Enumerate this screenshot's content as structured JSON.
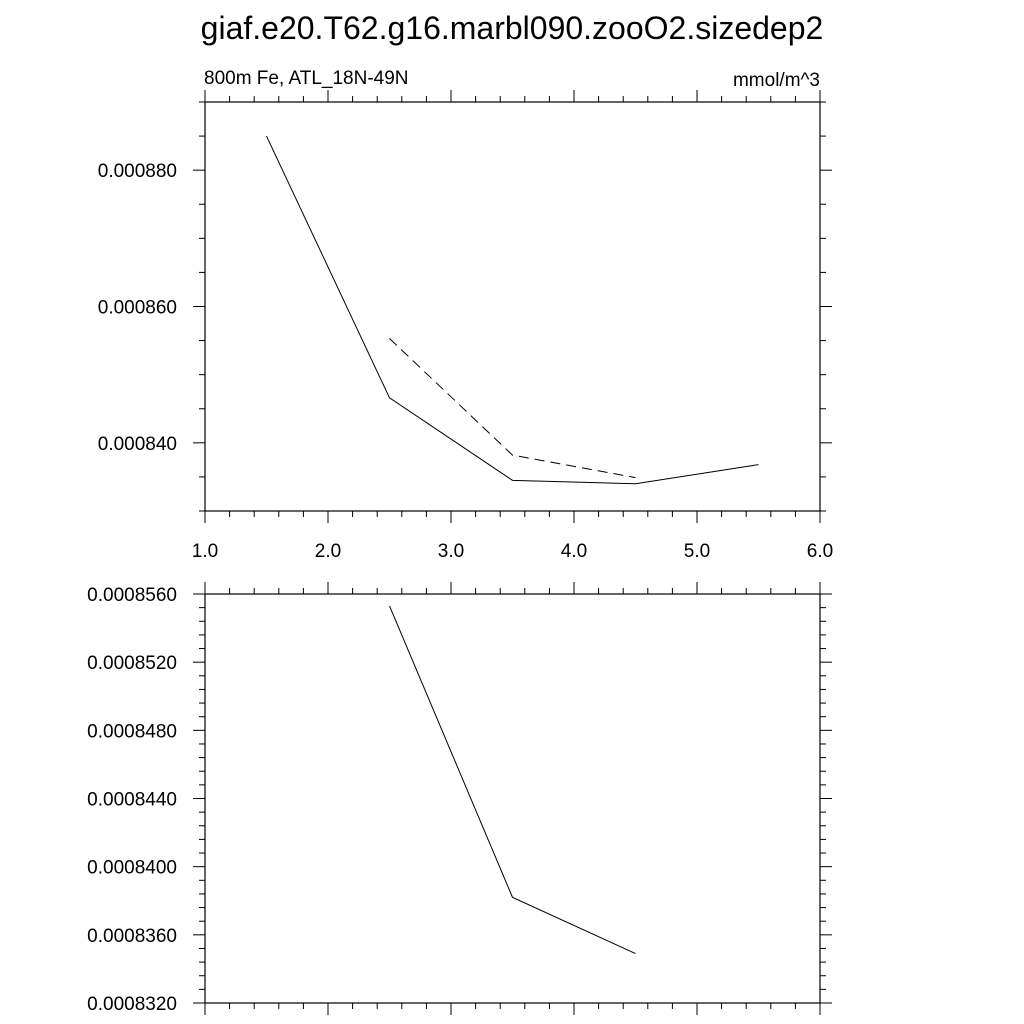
{
  "title": "giaf.e20.T62.g16.marbl090.zooO2.sizedep2",
  "chart_data": [
    {
      "type": "line",
      "left_label": "800m Fe, ATL_18N-49N",
      "right_label": "mmol/m^3",
      "xlim": [
        1.0,
        6.0
      ],
      "ylim": [
        0.00083,
        0.00089
      ],
      "x_ticks": [
        1.0,
        2.0,
        3.0,
        4.0,
        5.0,
        6.0
      ],
      "x_tick_labels": [
        "1.0",
        "2.0",
        "3.0",
        "4.0",
        "5.0",
        "6.0"
      ],
      "y_ticks": [
        0.00084,
        0.00086,
        0.00088
      ],
      "y_tick_labels": [
        "0.000840",
        "0.000860",
        "0.000880"
      ],
      "series": [
        {
          "line_style": "solid",
          "x": [
            1.5,
            2.5,
            3.5,
            4.5,
            5.5
          ],
          "y": [
            0.000885,
            0.0008466,
            0.0008345,
            0.000834,
            0.0008368
          ]
        },
        {
          "line_style": "dashed",
          "x": [
            2.5,
            3.5,
            4.5
          ],
          "y": [
            0.0008553,
            0.0008382,
            0.0008349
          ]
        }
      ]
    },
    {
      "type": "line",
      "xlim": [
        1.0,
        6.0
      ],
      "ylim": [
        0.000832,
        0.000856
      ],
      "y_ticks": [
        0.000832,
        0.000836,
        0.00084,
        0.000844,
        0.000848,
        0.000852,
        0.000856
      ],
      "y_tick_labels": [
        "0.0008320",
        "0.0008360",
        "0.0008400",
        "0.0008440",
        "0.0008480",
        "0.0008520",
        "0.0008560"
      ],
      "series": [
        {
          "line_style": "solid",
          "x": [
            2.5,
            3.5,
            4.5
          ],
          "y": [
            0.0008553,
            0.0008382,
            0.0008349
          ]
        }
      ]
    }
  ]
}
